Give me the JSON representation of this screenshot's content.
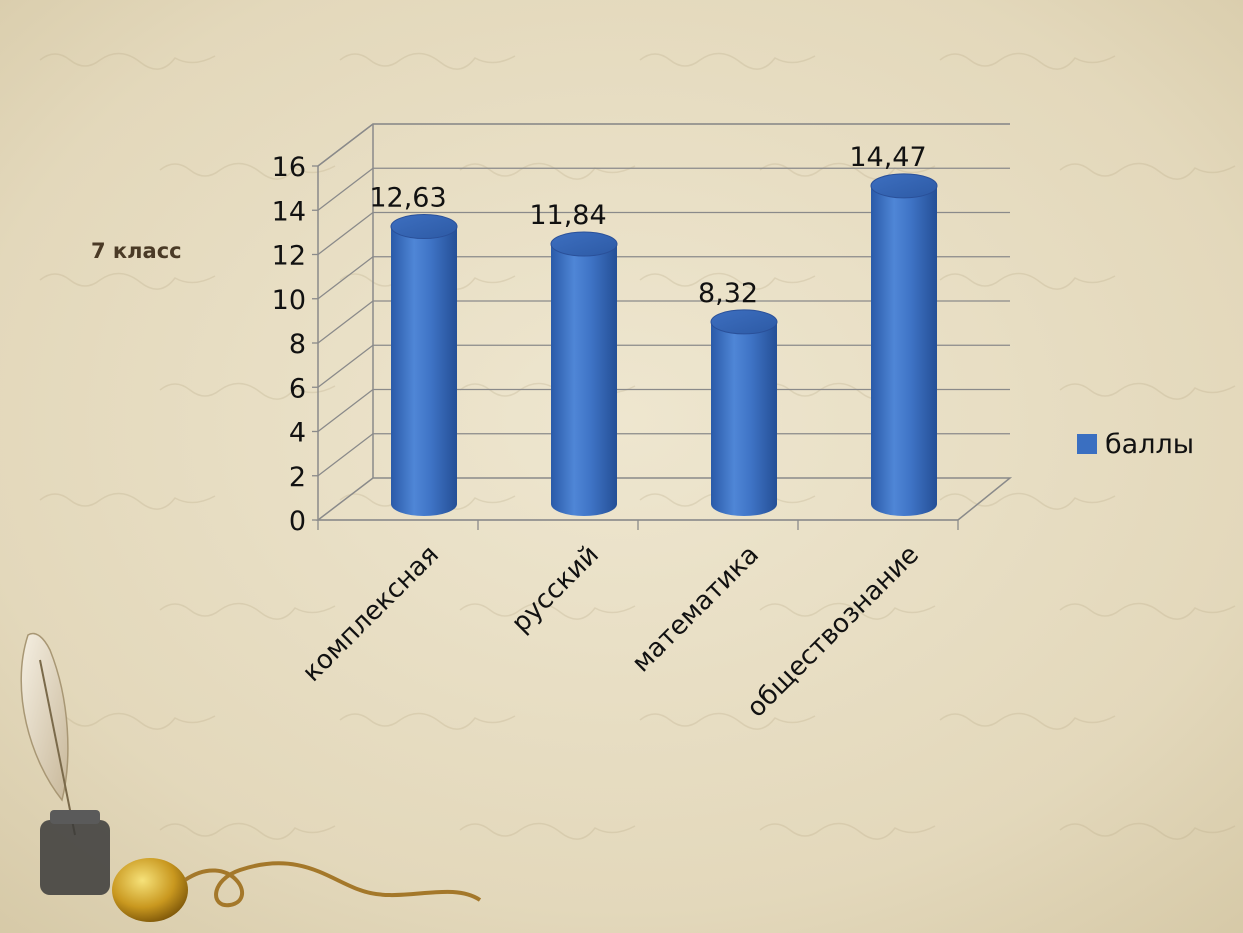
{
  "slide": {
    "side_label": "7 класс",
    "background_color": "#e7dcbf",
    "decoration": "quill-and-inkwell"
  },
  "chart_data": {
    "type": "bar",
    "style": "3d-cylinder",
    "categories": [
      "комплексная",
      "русский",
      "математика",
      "обществознание"
    ],
    "series": [
      {
        "name": "баллы",
        "values": [
          12.63,
          11.84,
          8.32,
          14.47
        ],
        "color": "#3a6fc1"
      }
    ],
    "data_labels": [
      "12,63",
      "11,84",
      "8,32",
      "14,47"
    ],
    "ylim": [
      0,
      16
    ],
    "y_ticks": [
      0,
      2,
      4,
      6,
      8,
      10,
      12,
      14,
      16
    ],
    "grid": true,
    "legend_position": "right",
    "title": "",
    "xlabel": "",
    "ylabel": ""
  }
}
